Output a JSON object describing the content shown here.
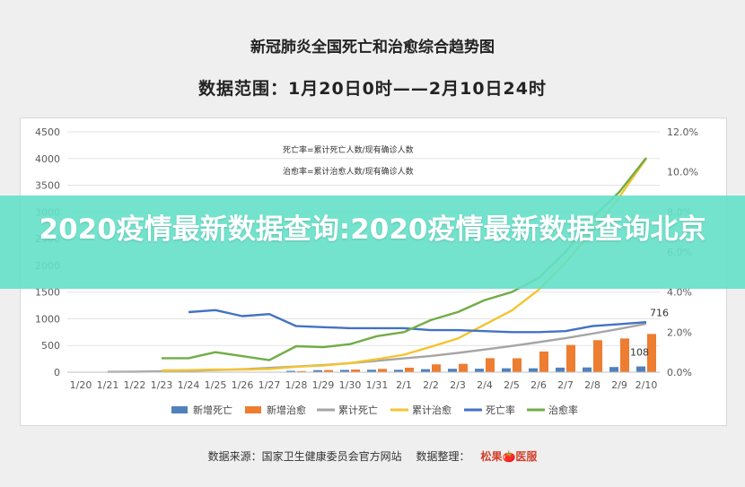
{
  "header": {
    "title": "新冠肺炎全国死亡和治愈综合趋势图",
    "subtitle": "数据范围：1月20日0时——2月10日24时"
  },
  "banner": {
    "text": "2020疫情最新数据查询:2020疫情最新数据查询北京"
  },
  "footer": {
    "source": "数据来源：国家卫生健康委员会官方网站",
    "organizer": "数据整理：",
    "logo_text": "松果🍅医服"
  },
  "chart_data": {
    "type": "bar",
    "title": "新冠肺炎全国死亡和治愈综合趋势图",
    "annotations": [
      "死亡率=累计死亡人数/现有确诊人数",
      "治愈率=累计治愈人数/现有确诊人数"
    ],
    "categories": [
      "1/20",
      "1/21",
      "1/22",
      "1/23",
      "1/24",
      "1/25",
      "1/26",
      "1/27",
      "1/28",
      "1/29",
      "1/30",
      "1/31",
      "2/1",
      "2/2",
      "2/3",
      "2/4",
      "2/5",
      "2/6",
      "2/7",
      "2/8",
      "2/9",
      "2/10"
    ],
    "ylim": [
      0,
      4500
    ],
    "y_ticks": [
      0,
      500,
      1000,
      1500,
      2000,
      2500,
      3000,
      3500,
      4000,
      4500
    ],
    "y2lim": [
      0,
      12
    ],
    "y2_ticks": [
      "0.0%",
      "2.0%",
      "4.0%",
      "6.0%",
      "8.0%",
      "10.0%",
      "12.0%"
    ],
    "data_labels": [
      {
        "category": "2/10",
        "value": "716"
      },
      {
        "category": "2/10",
        "value": "108"
      }
    ],
    "grid": true,
    "legend_position": "bottom",
    "series": [
      {
        "name": "新增死亡",
        "kind": "bar",
        "axis": "left",
        "color": "#4f81bd",
        "values": [
          0,
          0,
          0,
          0,
          0,
          0,
          0,
          0,
          26,
          38,
          43,
          46,
          45,
          57,
          64,
          65,
          73,
          73,
          86,
          89,
          97,
          108
        ]
      },
      {
        "name": "新增治愈",
        "kind": "bar",
        "axis": "left",
        "color": "#ed7d31",
        "values": [
          0,
          0,
          0,
          0,
          0,
          0,
          0,
          0,
          20,
          40,
          50,
          62,
          85,
          147,
          157,
          262,
          261,
          387,
          510,
          600,
          632,
          716
        ]
      },
      {
        "name": "累计死亡",
        "kind": "line",
        "axis": "left",
        "color": "#a5a5a5",
        "values": [
          null,
          6,
          9,
          17,
          25,
          41,
          56,
          80,
          106,
          132,
          170,
          213,
          259,
          304,
          361,
          425,
          490,
          563,
          636,
          722,
          811,
          908
        ]
      },
      {
        "name": "累计治愈",
        "kind": "line",
        "axis": "left",
        "color": "#f4c430",
        "values": [
          null,
          null,
          null,
          34,
          38,
          49,
          51,
          60,
          103,
          124,
          171,
          243,
          328,
          475,
          632,
          892,
          1153,
          1540,
          2050,
          2649,
          3281,
          4000
        ]
      },
      {
        "name": "死亡率",
        "kind": "line",
        "axis": "right",
        "color": "#4472c4",
        "values": [
          null,
          null,
          null,
          null,
          3.0,
          3.1,
          2.8,
          2.9,
          2.3,
          2.25,
          2.2,
          2.2,
          2.2,
          2.1,
          2.1,
          2.05,
          2.0,
          2.0,
          2.05,
          2.3,
          2.4,
          2.5
        ]
      },
      {
        "name": "治愈率",
        "kind": "line",
        "axis": "right",
        "color": "#70ad47",
        "values": [
          null,
          null,
          null,
          0.7,
          0.7,
          1.0,
          0.8,
          0.6,
          1.3,
          1.25,
          1.4,
          1.8,
          2.0,
          2.6,
          3.0,
          3.6,
          4.0,
          4.7,
          6.0,
          7.7,
          9.0,
          10.7
        ]
      }
    ]
  }
}
